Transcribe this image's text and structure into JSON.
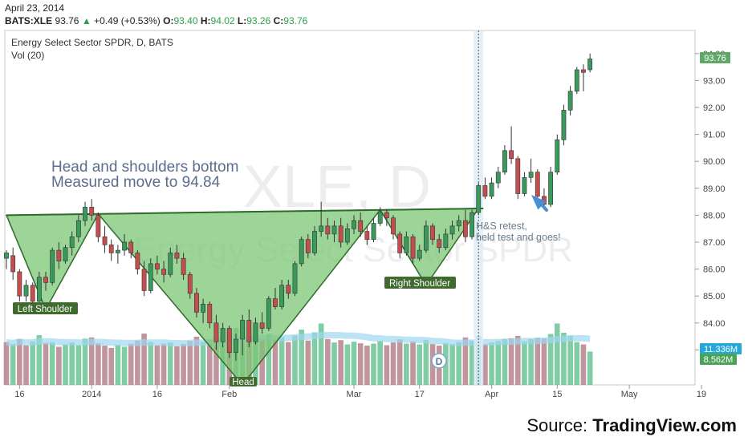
{
  "header": {
    "date": "April 23, 2014",
    "symbol": "BATS:XLE",
    "last": "93.76",
    "change_arrow": "▲",
    "change": "+0.49 (+0.53%)",
    "ohlc": [
      {
        "label": "O:",
        "value": "93.40"
      },
      {
        "label": "H:",
        "value": "94.02"
      },
      {
        "label": "L:",
        "value": "93.26"
      },
      {
        "label": "C:",
        "value": "93.76"
      }
    ]
  },
  "legend": {
    "title": "Energy Select Sector SPDR, D, BATS",
    "indicator": "Vol (20)"
  },
  "watermark": {
    "symbol": "XLE, D",
    "name": "Energy Select Sector SPDR"
  },
  "annotations": {
    "headline_1": "Head and shoulders bottom",
    "headline_2": "Measured move to 94.84",
    "left_shoulder": "Left Shoulder",
    "head": "Head",
    "right_shoulder": "Right Shoulder",
    "retest_1": "H&S retest,",
    "retest_2": "held test and goes!",
    "event_marker": "D"
  },
  "price_badges": {
    "last_price": "93.76",
    "vol_avg": "11.336M",
    "vol_last": "8.562M"
  },
  "source": {
    "prefix": "Source:",
    "brand": "TradingView.com"
  },
  "colors": {
    "up": "#3a9a5c",
    "down": "#c44d4d",
    "pattern_fill": "#7cc576",
    "pattern_line": "#2f6b2a",
    "label_bg": "#3f6b2f",
    "vol_up": "#5fbf8f",
    "vol_down": "#b27a85",
    "vol_ma": "#9fd7ee",
    "arrow": "#4a8fd4",
    "badge_price": "#5fa868",
    "badge_vol_avg": "#28a8d8",
    "badge_vol_last": "#4aa357"
  },
  "chart_data": {
    "type": "candlestick",
    "ylim": [
      82,
      94.5
    ],
    "y_ticks": [
      "83.00",
      "84.00",
      "85.00",
      "86.00",
      "87.00",
      "88.00",
      "89.00",
      "90.00",
      "91.00",
      "92.00",
      "93.00",
      "94.00"
    ],
    "x_ticks": [
      {
        "label": "16",
        "index": 2
      },
      {
        "label": "2014",
        "index": 13
      },
      {
        "label": "16",
        "index": 23
      },
      {
        "label": "Feb",
        "index": 34
      },
      {
        "label": "Mar",
        "index": 53
      },
      {
        "label": "17",
        "index": 63
      },
      {
        "label": "Apr",
        "index": 74
      },
      {
        "label": "15",
        "index": 84
      },
      {
        "label": "May",
        "index": 95
      },
      {
        "label": "19",
        "index": 106
      }
    ],
    "neckline": {
      "from": {
        "index": 0,
        "price": 88.0
      },
      "to": {
        "index": 72,
        "price": 88.25
      }
    },
    "pattern_lows": [
      {
        "index": 6,
        "price": 84.5
      },
      {
        "index": 36,
        "price": 81.7
      },
      {
        "index": 64,
        "price": 85.4
      }
    ],
    "measured_target": 94.84,
    "candles": [
      {
        "o": 86.4,
        "h": 86.7,
        "l": 86.0,
        "c": 86.6
      },
      {
        "o": 86.5,
        "h": 86.8,
        "l": 85.6,
        "c": 85.9
      },
      {
        "o": 85.9,
        "h": 86.0,
        "l": 84.8,
        "c": 85.0
      },
      {
        "o": 85.0,
        "h": 85.6,
        "l": 84.8,
        "c": 85.4
      },
      {
        "o": 85.4,
        "h": 85.5,
        "l": 84.6,
        "c": 84.8
      },
      {
        "o": 84.8,
        "h": 85.9,
        "l": 84.7,
        "c": 85.7
      },
      {
        "o": 85.7,
        "h": 85.9,
        "l": 85.2,
        "c": 85.5
      },
      {
        "o": 85.5,
        "h": 86.8,
        "l": 85.4,
        "c": 86.7
      },
      {
        "o": 86.7,
        "h": 87.0,
        "l": 86.0,
        "c": 86.3
      },
      {
        "o": 86.3,
        "h": 86.9,
        "l": 86.2,
        "c": 86.8
      },
      {
        "o": 86.8,
        "h": 87.4,
        "l": 86.5,
        "c": 87.2
      },
      {
        "o": 87.2,
        "h": 88.0,
        "l": 87.0,
        "c": 87.8
      },
      {
        "o": 87.8,
        "h": 88.5,
        "l": 87.6,
        "c": 88.3
      },
      {
        "o": 88.3,
        "h": 88.6,
        "l": 87.8,
        "c": 88.0
      },
      {
        "o": 88.0,
        "h": 88.1,
        "l": 87.0,
        "c": 87.2
      },
      {
        "o": 87.2,
        "h": 87.6,
        "l": 86.6,
        "c": 86.9
      },
      {
        "o": 86.9,
        "h": 87.1,
        "l": 86.3,
        "c": 86.6
      },
      {
        "o": 86.6,
        "h": 86.9,
        "l": 86.2,
        "c": 86.7
      },
      {
        "o": 86.7,
        "h": 87.3,
        "l": 86.5,
        "c": 87.0
      },
      {
        "o": 87.0,
        "h": 87.1,
        "l": 86.4,
        "c": 86.6
      },
      {
        "o": 86.6,
        "h": 86.7,
        "l": 85.8,
        "c": 86.0
      },
      {
        "o": 86.0,
        "h": 86.3,
        "l": 85.0,
        "c": 85.2
      },
      {
        "o": 85.2,
        "h": 86.4,
        "l": 85.1,
        "c": 86.2
      },
      {
        "o": 86.2,
        "h": 86.5,
        "l": 85.8,
        "c": 86.0
      },
      {
        "o": 86.0,
        "h": 86.3,
        "l": 85.5,
        "c": 85.8
      },
      {
        "o": 85.8,
        "h": 86.8,
        "l": 85.7,
        "c": 86.6
      },
      {
        "o": 86.6,
        "h": 86.9,
        "l": 86.2,
        "c": 86.4
      },
      {
        "o": 86.4,
        "h": 86.6,
        "l": 85.6,
        "c": 85.8
      },
      {
        "o": 85.8,
        "h": 85.9,
        "l": 84.9,
        "c": 85.1
      },
      {
        "o": 85.1,
        "h": 85.3,
        "l": 84.2,
        "c": 84.4
      },
      {
        "o": 84.4,
        "h": 84.9,
        "l": 84.0,
        "c": 84.7
      },
      {
        "o": 84.7,
        "h": 84.8,
        "l": 83.8,
        "c": 84.0
      },
      {
        "o": 84.0,
        "h": 84.3,
        "l": 83.0,
        "c": 83.3
      },
      {
        "o": 83.3,
        "h": 84.0,
        "l": 83.1,
        "c": 83.8
      },
      {
        "o": 83.8,
        "h": 83.9,
        "l": 82.7,
        "c": 82.9
      },
      {
        "o": 82.9,
        "h": 83.6,
        "l": 82.6,
        "c": 83.4
      },
      {
        "o": 83.4,
        "h": 84.3,
        "l": 82.8,
        "c": 84.1
      },
      {
        "o": 84.1,
        "h": 84.5,
        "l": 83.1,
        "c": 83.3
      },
      {
        "o": 83.3,
        "h": 84.2,
        "l": 83.2,
        "c": 84.0
      },
      {
        "o": 84.0,
        "h": 84.4,
        "l": 83.6,
        "c": 83.8
      },
      {
        "o": 83.8,
        "h": 85.0,
        "l": 83.7,
        "c": 84.9
      },
      {
        "o": 84.9,
        "h": 85.3,
        "l": 84.5,
        "c": 84.6
      },
      {
        "o": 84.6,
        "h": 85.6,
        "l": 84.5,
        "c": 85.4
      },
      {
        "o": 85.4,
        "h": 85.6,
        "l": 84.9,
        "c": 85.1
      },
      {
        "o": 85.1,
        "h": 86.3,
        "l": 85.0,
        "c": 86.2
      },
      {
        "o": 86.2,
        "h": 87.2,
        "l": 86.1,
        "c": 87.1
      },
      {
        "o": 87.1,
        "h": 87.3,
        "l": 86.4,
        "c": 86.6
      },
      {
        "o": 86.6,
        "h": 87.6,
        "l": 86.5,
        "c": 87.4
      },
      {
        "o": 87.4,
        "h": 88.5,
        "l": 87.2,
        "c": 87.6
      },
      {
        "o": 87.6,
        "h": 87.9,
        "l": 87.1,
        "c": 87.3
      },
      {
        "o": 87.3,
        "h": 87.8,
        "l": 87.0,
        "c": 87.6
      },
      {
        "o": 87.6,
        "h": 87.9,
        "l": 86.8,
        "c": 87.0
      },
      {
        "o": 87.0,
        "h": 87.7,
        "l": 86.9,
        "c": 87.5
      },
      {
        "o": 87.5,
        "h": 88.0,
        "l": 87.3,
        "c": 87.8
      },
      {
        "o": 87.8,
        "h": 88.1,
        "l": 87.2,
        "c": 87.4
      },
      {
        "o": 87.4,
        "h": 87.6,
        "l": 86.9,
        "c": 87.1
      },
      {
        "o": 87.1,
        "h": 87.9,
        "l": 87.0,
        "c": 87.7
      },
      {
        "o": 87.7,
        "h": 88.3,
        "l": 87.6,
        "c": 88.1
      },
      {
        "o": 88.1,
        "h": 88.2,
        "l": 87.6,
        "c": 87.9
      },
      {
        "o": 87.9,
        "h": 88.0,
        "l": 87.1,
        "c": 87.3
      },
      {
        "o": 87.3,
        "h": 87.4,
        "l": 86.4,
        "c": 86.6
      },
      {
        "o": 86.6,
        "h": 87.4,
        "l": 86.5,
        "c": 87.2
      },
      {
        "o": 87.2,
        "h": 87.3,
        "l": 86.2,
        "c": 86.4
      },
      {
        "o": 86.4,
        "h": 86.9,
        "l": 86.3,
        "c": 86.7
      },
      {
        "o": 86.7,
        "h": 87.8,
        "l": 86.6,
        "c": 87.6
      },
      {
        "o": 87.6,
        "h": 87.7,
        "l": 86.9,
        "c": 87.1
      },
      {
        "o": 87.1,
        "h": 87.3,
        "l": 86.6,
        "c": 86.8
      },
      {
        "o": 86.8,
        "h": 87.5,
        "l": 86.7,
        "c": 87.3
      },
      {
        "o": 87.3,
        "h": 87.8,
        "l": 87.1,
        "c": 87.6
      },
      {
        "o": 87.6,
        "h": 88.0,
        "l": 87.4,
        "c": 87.8
      },
      {
        "o": 87.8,
        "h": 88.2,
        "l": 87.0,
        "c": 87.2
      },
      {
        "o": 87.2,
        "h": 88.2,
        "l": 87.1,
        "c": 88.1
      },
      {
        "o": 88.1,
        "h": 89.2,
        "l": 88.0,
        "c": 89.1
      },
      {
        "o": 89.1,
        "h": 89.4,
        "l": 88.6,
        "c": 88.7
      },
      {
        "o": 88.7,
        "h": 89.4,
        "l": 88.6,
        "c": 89.2
      },
      {
        "o": 89.2,
        "h": 89.8,
        "l": 89.0,
        "c": 89.6
      },
      {
        "o": 89.6,
        "h": 90.6,
        "l": 89.5,
        "c": 90.4
      },
      {
        "o": 90.4,
        "h": 91.3,
        "l": 89.9,
        "c": 90.1
      },
      {
        "o": 90.1,
        "h": 90.2,
        "l": 88.6,
        "c": 88.8
      },
      {
        "o": 88.8,
        "h": 89.6,
        "l": 88.7,
        "c": 89.4
      },
      {
        "o": 89.4,
        "h": 90.1,
        "l": 89.2,
        "c": 89.6
      },
      {
        "o": 89.6,
        "h": 89.7,
        "l": 88.6,
        "c": 88.7
      },
      {
        "o": 88.7,
        "h": 89.0,
        "l": 88.2,
        "c": 88.4
      },
      {
        "o": 88.4,
        "h": 89.8,
        "l": 88.3,
        "c": 89.6
      },
      {
        "o": 89.6,
        "h": 91.0,
        "l": 89.5,
        "c": 90.8
      },
      {
        "o": 90.8,
        "h": 92.1,
        "l": 90.6,
        "c": 91.9
      },
      {
        "o": 91.9,
        "h": 92.8,
        "l": 91.7,
        "c": 92.6
      },
      {
        "o": 92.6,
        "h": 93.5,
        "l": 92.5,
        "c": 93.4
      },
      {
        "o": 93.4,
        "h": 93.6,
        "l": 92.6,
        "c": 93.3
      },
      {
        "o": 93.4,
        "h": 94.0,
        "l": 93.3,
        "c": 93.8
      }
    ],
    "volume": [
      {
        "v": 11,
        "up": false
      },
      {
        "v": 10.5,
        "up": true
      },
      {
        "v": 11.8,
        "up": false
      },
      {
        "v": 10.2,
        "up": false
      },
      {
        "v": 11.2,
        "up": true
      },
      {
        "v": 12.8,
        "up": true
      },
      {
        "v": 10.8,
        "up": false
      },
      {
        "v": 11.0,
        "up": true
      },
      {
        "v": 9.8,
        "up": false
      },
      {
        "v": 10.4,
        "up": true
      },
      {
        "v": 10.9,
        "up": true
      },
      {
        "v": 10.2,
        "up": true
      },
      {
        "v": 11.9,
        "up": true
      },
      {
        "v": 12.2,
        "up": false
      },
      {
        "v": 10.7,
        "up": false
      },
      {
        "v": 10.1,
        "up": false
      },
      {
        "v": 9.5,
        "up": false
      },
      {
        "v": 10.3,
        "up": true
      },
      {
        "v": 9.8,
        "up": true
      },
      {
        "v": 10.6,
        "up": false
      },
      {
        "v": 11.4,
        "up": false
      },
      {
        "v": 13.2,
        "up": false
      },
      {
        "v": 11.0,
        "up": true
      },
      {
        "v": 10.2,
        "up": false
      },
      {
        "v": 10.6,
        "up": false
      },
      {
        "v": 10.9,
        "up": true
      },
      {
        "v": 9.9,
        "up": false
      },
      {
        "v": 10.5,
        "up": false
      },
      {
        "v": 11.3,
        "up": false
      },
      {
        "v": 12.4,
        "up": false
      },
      {
        "v": 11.1,
        "up": true
      },
      {
        "v": 11.6,
        "up": false
      },
      {
        "v": 12.6,
        "up": false
      },
      {
        "v": 11.3,
        "up": true
      },
      {
        "v": 13.8,
        "up": false
      },
      {
        "v": 14.6,
        "up": true
      },
      {
        "v": 15.4,
        "up": true
      },
      {
        "v": 12.6,
        "up": false
      },
      {
        "v": 13.4,
        "up": true
      },
      {
        "v": 11.8,
        "up": false
      },
      {
        "v": 13.1,
        "up": true
      },
      {
        "v": 11.6,
        "up": false
      },
      {
        "v": 12.3,
        "up": true
      },
      {
        "v": 11.0,
        "up": false
      },
      {
        "v": 12.7,
        "up": true
      },
      {
        "v": 14.2,
        "up": true
      },
      {
        "v": 11.4,
        "up": false
      },
      {
        "v": 13.5,
        "up": true
      },
      {
        "v": 15.8,
        "up": true
      },
      {
        "v": 11.8,
        "up": false
      },
      {
        "v": 10.9,
        "up": true
      },
      {
        "v": 11.5,
        "up": false
      },
      {
        "v": 10.4,
        "up": true
      },
      {
        "v": 11.1,
        "up": true
      },
      {
        "v": 10.7,
        "up": false
      },
      {
        "v": 10.1,
        "up": false
      },
      {
        "v": 10.6,
        "up": true
      },
      {
        "v": 11.3,
        "up": true
      },
      {
        "v": 10.2,
        "up": false
      },
      {
        "v": 10.9,
        "up": false
      },
      {
        "v": 11.7,
        "up": false
      },
      {
        "v": 10.6,
        "up": true
      },
      {
        "v": 11.2,
        "up": false
      },
      {
        "v": 10.4,
        "up": true
      },
      {
        "v": 11.6,
        "up": true
      },
      {
        "v": 10.5,
        "up": false
      },
      {
        "v": 10.1,
        "up": false
      },
      {
        "v": 10.8,
        "up": true
      },
      {
        "v": 10.5,
        "up": true
      },
      {
        "v": 11.0,
        "up": true
      },
      {
        "v": 12.2,
        "up": false
      },
      {
        "v": 11.4,
        "up": true
      },
      {
        "v": 12.6,
        "up": true
      },
      {
        "v": 10.5,
        "up": false
      },
      {
        "v": 10.9,
        "up": true
      },
      {
        "v": 11.3,
        "up": true
      },
      {
        "v": 11.8,
        "up": true
      },
      {
        "v": 12.0,
        "up": false
      },
      {
        "v": 12.6,
        "up": false
      },
      {
        "v": 11.2,
        "up": true
      },
      {
        "v": 11.8,
        "up": true
      },
      {
        "v": 12.1,
        "up": false
      },
      {
        "v": 11.9,
        "up": false
      },
      {
        "v": 13.1,
        "up": true
      },
      {
        "v": 15.8,
        "up": true
      },
      {
        "v": 13.4,
        "up": true
      },
      {
        "v": 12.6,
        "up": true
      },
      {
        "v": 11.0,
        "up": true
      },
      {
        "v": 10.4,
        "up": false
      },
      {
        "v": 8.562,
        "up": true
      }
    ],
    "volume_ma_last": 11.336,
    "volume_max": 16.5
  }
}
